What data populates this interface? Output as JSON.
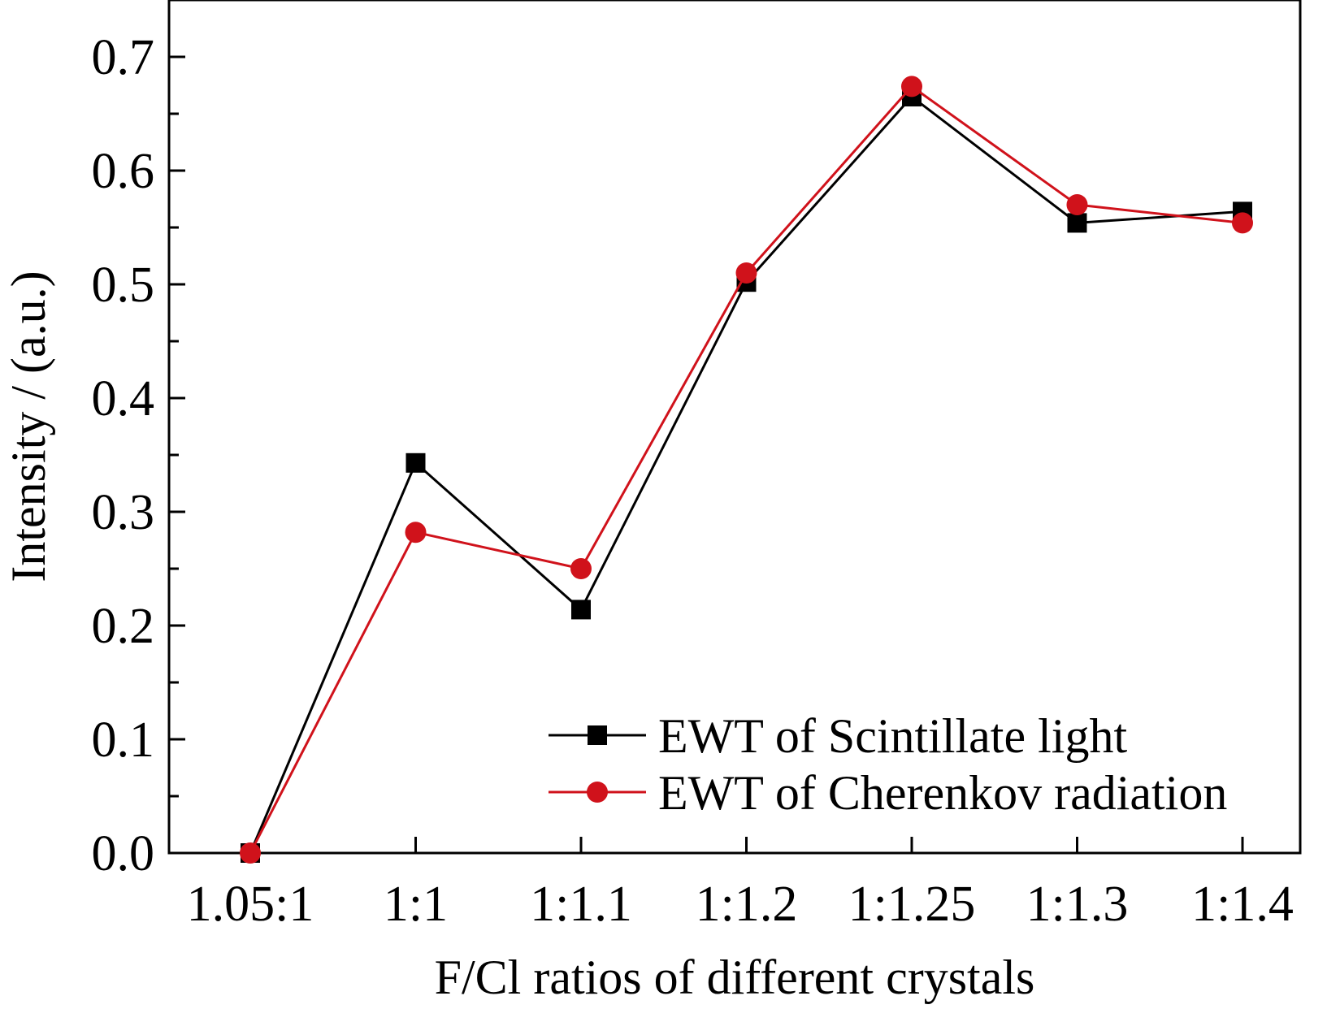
{
  "chart_data": {
    "type": "line",
    "title": "",
    "xlabel": "F/Cl ratios of different crystals",
    "ylabel": "Intensity / (a.u.)",
    "categories": [
      "1.05:1",
      "1:1",
      "1:1.1",
      "1:1.2",
      "1:1.25",
      "1:1.3",
      "1:1.4"
    ],
    "ylim": [
      0.0,
      0.75
    ],
    "yticks": [
      "0.0",
      "0.1",
      "0.2",
      "0.3",
      "0.4",
      "0.5",
      "0.6",
      "0.7"
    ],
    "grid": false,
    "legend_position": "bottom-right",
    "series": [
      {
        "name": "EWT of Scintillate light",
        "marker": "square",
        "color": "#000000",
        "values": [
          0.0,
          0.343,
          0.214,
          0.502,
          0.665,
          0.554,
          0.564
        ]
      },
      {
        "name": "EWT of Cherenkov radiation",
        "marker": "circle",
        "color": "#d0121b",
        "values": [
          0.0,
          0.282,
          0.25,
          0.51,
          0.674,
          0.57,
          0.554
        ]
      }
    ]
  }
}
